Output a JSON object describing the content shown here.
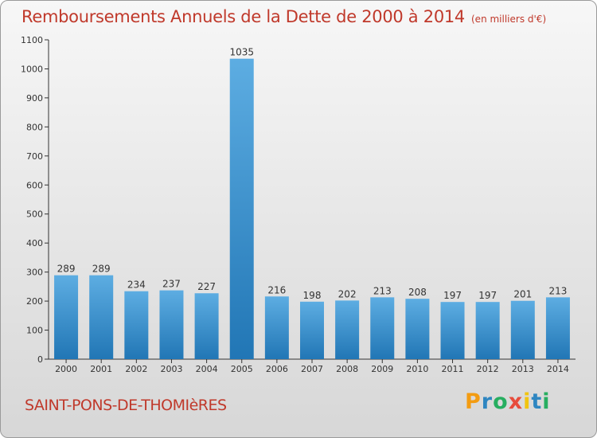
{
  "header": {
    "title": "Remboursements Annuels de la Dette de 2000 à 2014",
    "unit": "(en milliers d'€)"
  },
  "footer": {
    "commune": "SAINT-PONS-DE-THOMIèRES",
    "logo": "Proxiti"
  },
  "colors": {
    "title": "#c0392b",
    "bar_light": "#5dade2",
    "bar_dark": "#2176b5",
    "logo_letters": [
      "#f39c12",
      "#2e86c1",
      "#27ae60",
      "#e74c3c",
      "#f1c40f",
      "#2e86c1",
      "#27ae60"
    ]
  },
  "chart_data": {
    "type": "bar",
    "categories": [
      "2000",
      "2001",
      "2002",
      "2003",
      "2004",
      "2005",
      "2006",
      "2007",
      "2008",
      "2009",
      "2010",
      "2011",
      "2012",
      "2013",
      "2014"
    ],
    "values": [
      289,
      289,
      234,
      237,
      227,
      1035,
      216,
      198,
      202,
      213,
      208,
      197,
      197,
      201,
      213
    ],
    "ylim": [
      0,
      1100
    ],
    "yticks": [
      0,
      100,
      200,
      300,
      400,
      500,
      600,
      700,
      800,
      900,
      1000,
      1100
    ],
    "grid": false,
    "data_labels": true
  }
}
